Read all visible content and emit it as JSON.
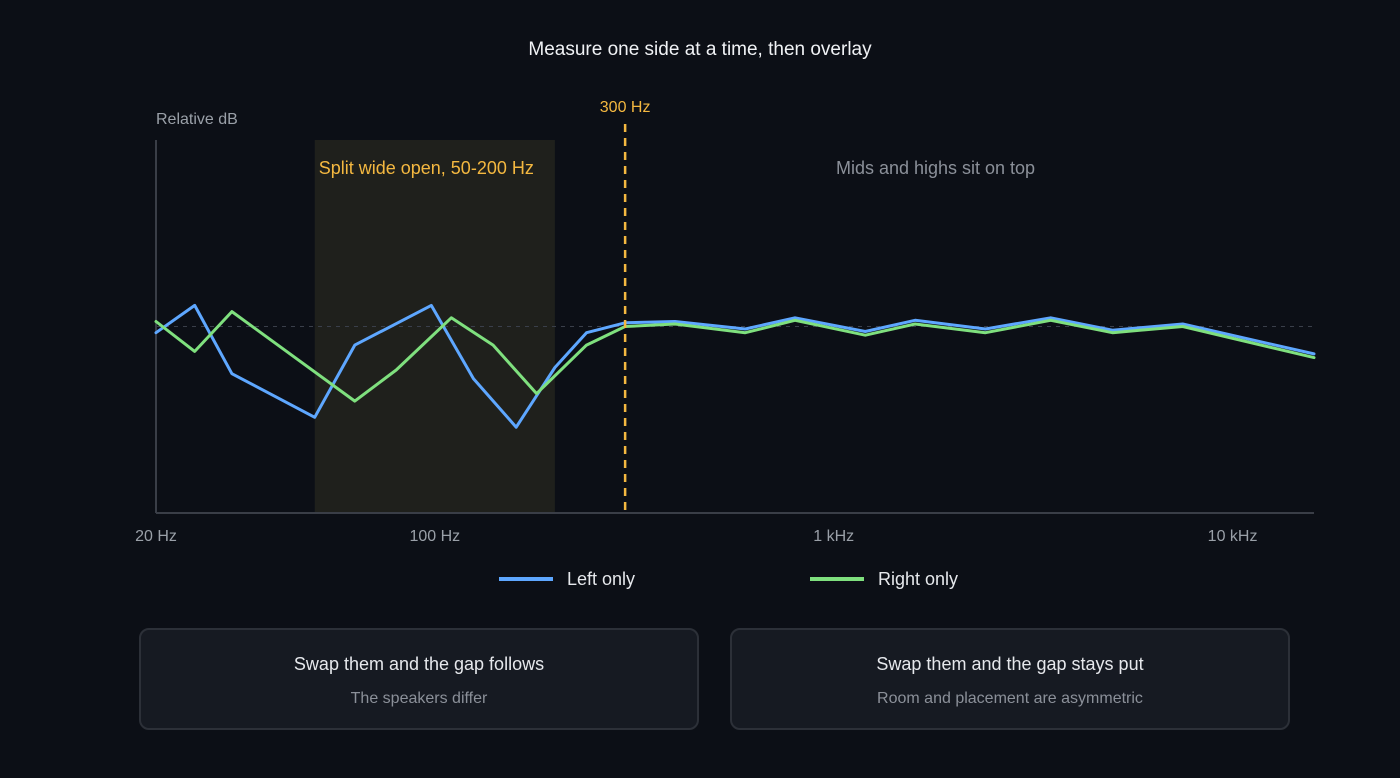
{
  "chart_data": {
    "type": "line",
    "title": "Measure one side at a time, then overlay",
    "ylabel": "Relative dB",
    "x_scale": "log",
    "xlim": [
      20,
      16000
    ],
    "ylim": [
      -15,
      15
    ],
    "x_ticks": [
      {
        "value": 20,
        "label": "20 Hz"
      },
      {
        "value": 100,
        "label": "100 Hz"
      },
      {
        "value": 1000,
        "label": "1 kHz"
      },
      {
        "value": 10000,
        "label": "10 kHz"
      }
    ],
    "reference_y": 0,
    "series": [
      {
        "name": "Left only",
        "color": "#5ea7ff",
        "x": [
          20,
          25,
          31,
          50,
          63,
          98,
          125,
          160,
          200,
          240,
          300,
          400,
          600,
          800,
          1200,
          1600,
          2400,
          3500,
          5000,
          7500,
          16000
        ],
        "y": [
          -0.5,
          1.7,
          -3.8,
          -7.3,
          -1.5,
          1.7,
          -4.2,
          -8.1,
          -3.3,
          -0.5,
          0.3,
          0.4,
          -0.2,
          0.7,
          -0.4,
          0.5,
          -0.2,
          0.7,
          -0.3,
          0.2,
          -2.2
        ]
      },
      {
        "name": "Right only",
        "color": "#7fe07e",
        "x": [
          20,
          25,
          31,
          63,
          80,
          110,
          140,
          180,
          240,
          300,
          400,
          600,
          800,
          1200,
          1600,
          2400,
          3500,
          5000,
          7500,
          16000
        ],
        "y": [
          0.4,
          -2.0,
          1.2,
          -6.0,
          -3.5,
          0.7,
          -1.5,
          -5.4,
          -1.5,
          0.0,
          0.2,
          -0.5,
          0.5,
          -0.7,
          0.2,
          -0.5,
          0.5,
          -0.5,
          0.0,
          -2.5
        ]
      }
    ],
    "shaded_region": {
      "x": [
        50,
        200
      ],
      "label": "Split wide open, 50-200 Hz",
      "color": "#f4b840"
    },
    "vertical_marker": {
      "x": 300,
      "label": "300 Hz",
      "color": "#f4b840"
    },
    "annotation": {
      "text": "Mids and highs sit on top",
      "x": 1800
    },
    "legend_position": "bottom-center",
    "grid": false
  },
  "cards": [
    {
      "title": "Swap them and the gap follows",
      "subtitle": "The speakers differ"
    },
    {
      "title": "Swap them and the gap stays put",
      "subtitle": "Room and placement are asymmetric"
    }
  ]
}
